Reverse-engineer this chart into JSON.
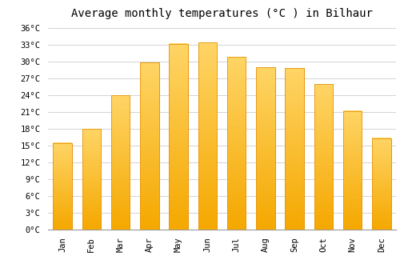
{
  "title": "Average monthly temperatures (°C ) in Bilhaur",
  "months": [
    "Jan",
    "Feb",
    "Mar",
    "Apr",
    "May",
    "Jun",
    "Jul",
    "Aug",
    "Sep",
    "Oct",
    "Nov",
    "Dec"
  ],
  "values": [
    15.5,
    18.0,
    24.0,
    29.8,
    33.2,
    33.4,
    30.8,
    29.0,
    28.8,
    26.0,
    21.2,
    16.3
  ],
  "bar_color_top": "#FFC84A",
  "bar_color_bottom": "#F5A800",
  "bar_edge_color": "#E8950A",
  "background_color": "#FFFFFF",
  "grid_color": "#CCCCCC",
  "ytick_labels": [
    "0°C",
    "3°C",
    "6°C",
    "9°C",
    "12°C",
    "15°C",
    "18°C",
    "21°C",
    "24°C",
    "27°C",
    "30°C",
    "33°C",
    "36°C"
  ],
  "ytick_values": [
    0,
    3,
    6,
    9,
    12,
    15,
    18,
    21,
    24,
    27,
    30,
    33,
    36
  ],
  "ylim": [
    0,
    37
  ],
  "title_fontsize": 10,
  "tick_fontsize": 7.5,
  "tick_font": "monospace"
}
